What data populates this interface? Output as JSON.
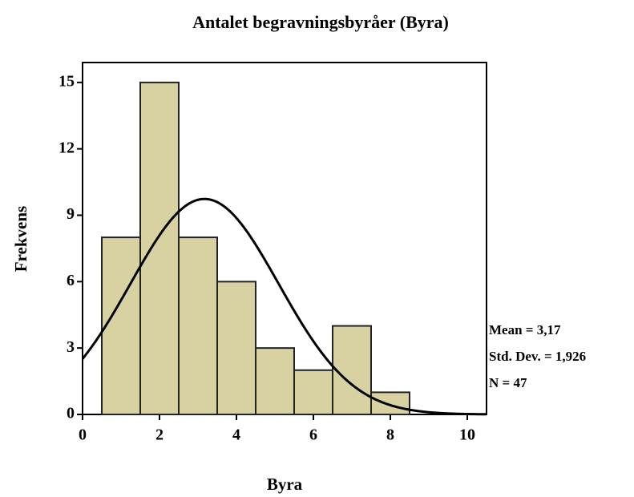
{
  "chart_data": {
    "type": "histogram",
    "title": "Antalet begravningsbyråer (Byra)",
    "x_label": "Byra",
    "y_label": "Frekvens",
    "bins": [
      0.5,
      1.5,
      2.5,
      3.5,
      4.5,
      5.5,
      6.5,
      7.5,
      8.5
    ],
    "values": [
      8,
      15,
      8,
      6,
      3,
      2,
      4,
      1
    ],
    "color": "#d8d2a2",
    "xlim": [
      0,
      10.5
    ],
    "xticks": [
      0,
      2,
      4,
      6,
      8,
      10
    ],
    "ylim": [
      0,
      15.9
    ],
    "yticks": [
      0,
      3,
      6,
      9,
      12,
      15
    ],
    "normal_curve": true,
    "stats": [
      {
        "value": 3.17,
        "label": "Mean = 3,17"
      },
      {
        "value": 1.926,
        "label": "Std. Dev. = 1,926"
      },
      {
        "value": 47,
        "label": "N = 47"
      }
    ]
  }
}
